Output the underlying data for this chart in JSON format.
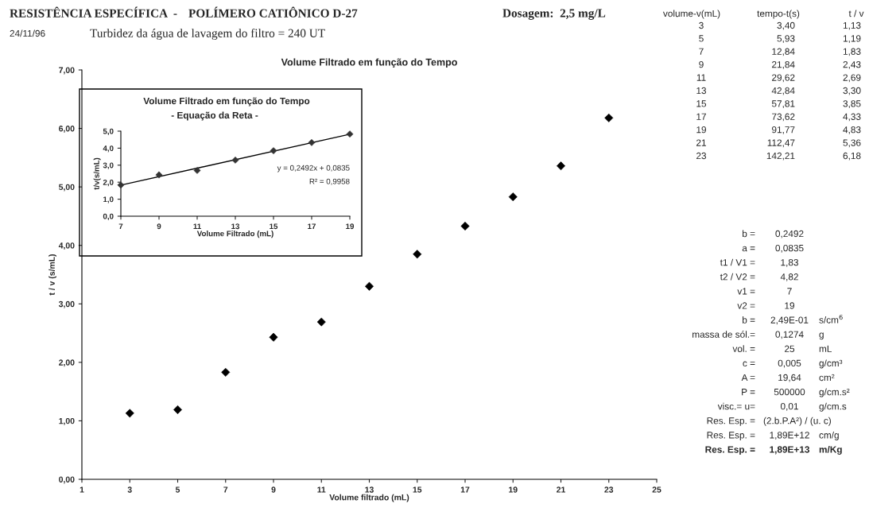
{
  "chart_data": [
    {
      "type": "scatter",
      "title": "Volume Filtrado em função do Tempo",
      "xlabel": "Volume filtrado (mL)",
      "ylabel": "t / v (s/mL)",
      "x": [
        3,
        5,
        7,
        9,
        11,
        13,
        15,
        17,
        19,
        21,
        23
      ],
      "series": [
        {
          "color": "#000000",
          "values": [
            1.13,
            1.19,
            1.83,
            2.43,
            2.69,
            3.3,
            3.85,
            4.33,
            4.83,
            5.36,
            6.18
          ]
        }
      ],
      "marker": "diamond",
      "grid": false,
      "legend": false,
      "xlim": [
        1,
        25
      ],
      "xticks": [
        1,
        3,
        5,
        7,
        9,
        11,
        13,
        15,
        17,
        19,
        21,
        23,
        25
      ],
      "ylim": [
        0,
        7
      ],
      "yticks": [
        {
          "value": 0,
          "label": "0,00"
        },
        {
          "value": 1,
          "label": "1,00"
        },
        {
          "value": 2,
          "label": "2,00"
        },
        {
          "value": 3,
          "label": "3,00"
        },
        {
          "value": 4,
          "label": "4,00"
        },
        {
          "value": 5,
          "label": "5,00"
        },
        {
          "value": 6,
          "label": "6,00"
        },
        {
          "value": 7,
          "label": "7,00"
        }
      ],
      "annotations": [
        "RESISTÊNCIA ESPECÍFICA  -",
        "POLÍMERO CATIÔNICO D-27",
        "Dosagem:  2,5 mg/L",
        "24/11/96",
        "Turbidez da água de lavagem do filtro = 240 UT",
        "volume-v(mL)",
        "tempo-t(s)",
        "t / v",
        "3",
        "3,40",
        "1,13",
        "5",
        "5,93",
        "1,19",
        "7",
        "12,84",
        "1,83",
        "9",
        "21,84",
        "2,43",
        "11",
        "29,62",
        "2,69",
        "13",
        "42,84",
        "3,30",
        "15",
        "57,81",
        "3,85",
        "17",
        "73,62",
        "4,33",
        "19",
        "91,77",
        "4,83",
        "21",
        "112,47",
        "5,36",
        "23",
        "142,21",
        "6,18",
        "b =",
        "0,2492",
        "a =",
        "0,0835",
        "t1 / V1 =",
        "1,83",
        "t2 / V2 =",
        "4,82",
        "v1 =",
        "7",
        "v2 =",
        "19",
        "b =",
        "2,49E-01",
        "s/cm$^{6}$",
        "massa de sól.=",
        "0,1274",
        "g",
        "vol. =",
        "25",
        "mL",
        "c =",
        "0,005",
        "g/cm³",
        "A =",
        "19,64",
        "cm²",
        "P =",
        "500000",
        "g/cm.s²",
        "visc.= u=",
        "0,01",
        "g/cm.s",
        "Res. Esp. =",
        "(2.b.P.A²) / (u. c)",
        "Res. Esp. =",
        "1,89E+12",
        "cm/g",
        "Res. Esp. =",
        "1,89E+13",
        "m/Kg"
      ]
    },
    {
      "type": "scatter",
      "title": "Volume Filtrado em função do Tempo",
      "subtitle": "- Equação da Reta -",
      "xlabel": "Volume Filtrado (mL)",
      "ylabel": "t/v(s/mL)",
      "grid": false,
      "legend": false,
      "series": [
        {
          "color": "#333333",
          "marker": "diamond",
          "x": [
            7,
            9,
            11,
            13,
            15,
            17,
            19
          ],
          "values": [
            1.83,
            2.43,
            2.69,
            3.3,
            3.85,
            4.33,
            4.83
          ]
        },
        {
          "type": "line",
          "color": "#000000",
          "x": [
            7,
            19
          ],
          "values": [
            1.83,
            4.82
          ],
          "line_style": "solid",
          "marker": "none"
        }
      ],
      "xlim": [
        7,
        19
      ],
      "xticks": [
        7,
        9,
        11,
        13,
        15,
        17,
        19
      ],
      "ylim": [
        0,
        5
      ],
      "yticks": [
        {
          "value": 0,
          "label": "0,0"
        },
        {
          "value": 1,
          "label": "1,0"
        },
        {
          "value": 2,
          "label": "2,0"
        },
        {
          "value": 3,
          "label": "3,0"
        },
        {
          "value": 4,
          "label": "4,0"
        },
        {
          "value": 5,
          "label": "5,0"
        }
      ],
      "annotations": [
        "y = 0,2492x + 0,0835",
        "R² = 0,9958"
      ]
    }
  ]
}
